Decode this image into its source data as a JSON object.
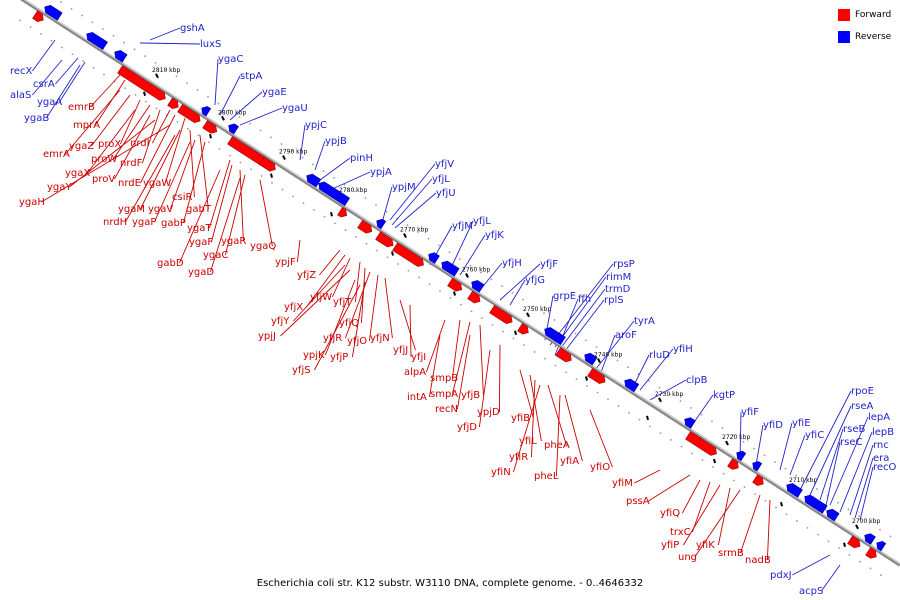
{
  "legend": {
    "forward_label": "Forward",
    "forward_color": "#ff0000",
    "reverse_label": "Reverse",
    "reverse_color": "#0000ff"
  },
  "caption": "Escherichia coli str. K12 substr. W3110 DNA, complete genome. - 0..4646332",
  "colors": {
    "forward_label": "#cc0000",
    "reverse_label": "#2222cc",
    "backbone": "#777777"
  },
  "kbp_ticks": [
    "2810 kbp",
    "2800 kbp",
    "2790 kbp",
    "2780 kbp",
    "2770 kbp",
    "2760 kbp",
    "2750 kbp",
    "2740 kbp",
    "2730 kbp",
    "2720 kbp",
    "2710 kbp",
    "2700 kbp"
  ],
  "genes_reverse": [
    "gshA",
    "luxS",
    "recX",
    "csrA",
    "alaS",
    "ygaA",
    "ygaB",
    "ygaC",
    "stpA",
    "ygaE",
    "ygaU",
    "ypjC",
    "ypjB",
    "pinH",
    "ypjA",
    "yfjV",
    "yfjL",
    "yfjU",
    "ypjM",
    "yfjM",
    "yfjL",
    "yfjK",
    "yfjH",
    "yfjF",
    "yfjG",
    "grpE",
    "rpsP",
    "rimM",
    "trmD",
    "rplS",
    "ffh",
    "tyrA",
    "aroF",
    "yfiH",
    "rluD",
    "clpB",
    "kgtP",
    "yfiF",
    "yfiD",
    "yfiE",
    "yfiC",
    "rpoE",
    "rseA",
    "rseB",
    "lepA",
    "rseC",
    "lepB",
    "rnc",
    "era",
    "recO",
    "pdxJ",
    "acpS"
  ],
  "genes_forward": [
    "emrB",
    "mprA",
    "emrA",
    "ygaZ",
    "proX",
    "proW",
    "nrdF",
    "ygaX",
    "proV",
    "nrdI",
    "ygaY",
    "nrdE",
    "ygaW",
    "ygaH",
    "csiR",
    "ygaM",
    "gabT",
    "nrdH",
    "ygaV",
    "ygaP",
    "gabP",
    "ygaT",
    "ygaF",
    "ygaR",
    "ygaC",
    "ygaQ",
    "gabD",
    "ygaD",
    "ypjF",
    "yfjZ",
    "yfjX",
    "yfjW",
    "yfjT",
    "yfjY",
    "yfjQ",
    "ypjJ",
    "yfjR",
    "yfjO",
    "yfjN",
    "ypjK",
    "yfjP",
    "yfjS",
    "yfjJ",
    "yfjI",
    "alpA",
    "smpB",
    "smpA",
    "yfjB",
    "intA",
    "recN",
    "ypjD",
    "yfjD",
    "yfiB",
    "yfiL",
    "pheA",
    "yfiR",
    "yfiA",
    "yfiN",
    "pheL",
    "yfiO",
    "yfiM",
    "pssA",
    "yfiQ",
    "trxC",
    "yfiP",
    "yfiK",
    "ung",
    "srmB",
    "nadB"
  ]
}
